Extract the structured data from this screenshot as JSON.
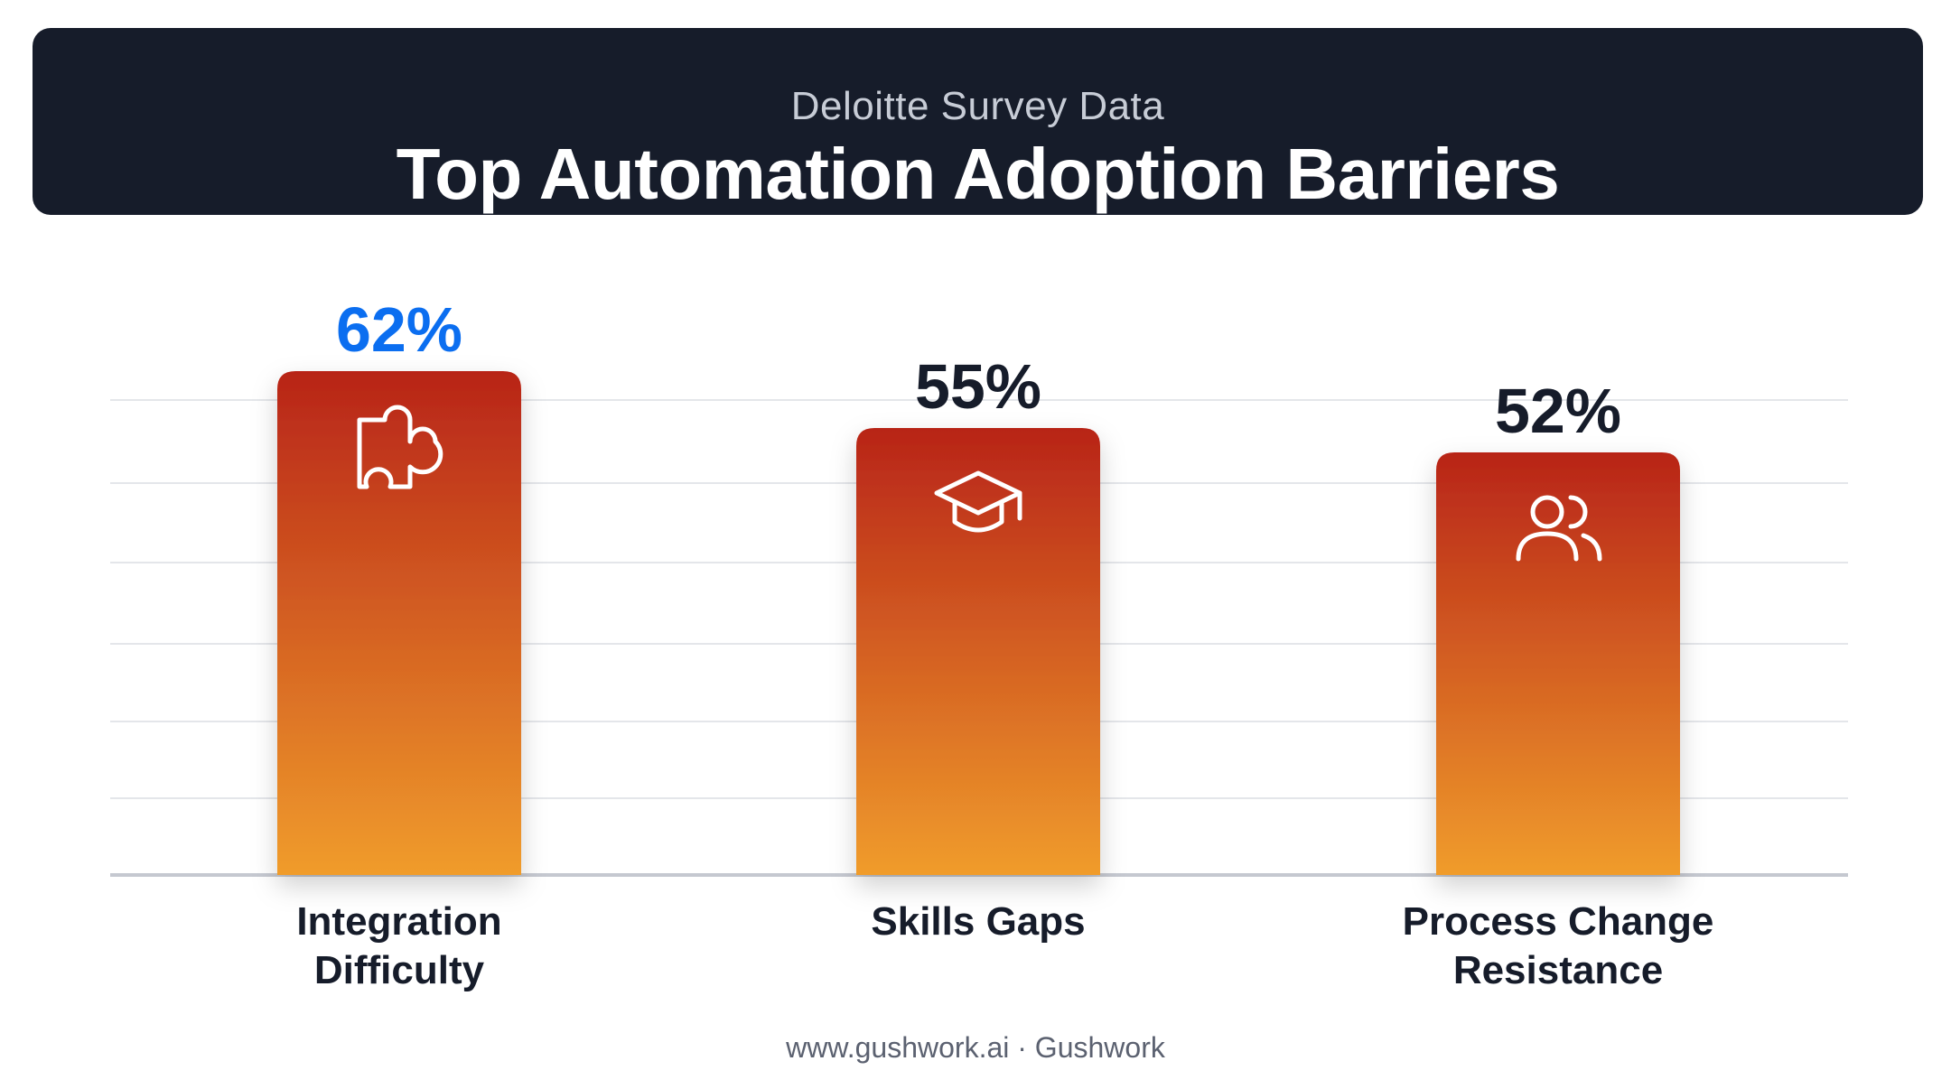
{
  "header": {
    "subtitle": "Deloitte Survey Data",
    "title": "Top Automation Adoption Barriers"
  },
  "chart_data": {
    "type": "bar",
    "categories": [
      [
        "Integration",
        "Difficulty"
      ],
      [
        "Skills Gaps"
      ],
      [
        "Process Change",
        "Resistance"
      ]
    ],
    "values": [
      62,
      55,
      52
    ],
    "value_labels": [
      "62%",
      "55%",
      "52%"
    ],
    "icons": [
      "puzzle-icon",
      "graduation-cap-icon",
      "users-icon"
    ],
    "highlight_index": 0,
    "colors": {
      "bar_top": "#b82418",
      "bar_bottom": "#f09c2c",
      "highlight_label": "#0b6ef0",
      "label": "#161c2a",
      "grid": "#e4e6ea",
      "axis": "#c5c8d0"
    },
    "ylim": [
      0,
      62
    ],
    "grid": true
  },
  "footer": {
    "text": "www.gushwork.ai · Gushwork"
  }
}
